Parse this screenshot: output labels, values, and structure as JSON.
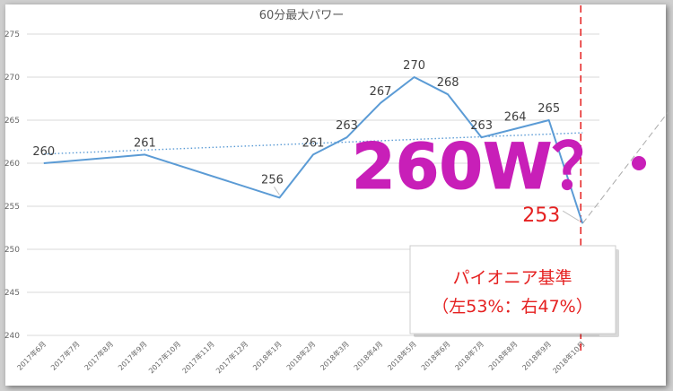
{
  "chart_data": {
    "type": "line",
    "title": "60分最大パワー",
    "categories": [
      "2017年6月",
      "2017年7月",
      "2017年8月",
      "2017年9月",
      "2017年10月",
      "2017年11月",
      "2017年12月",
      "2018年1月",
      "2018年2月",
      "2018年3月",
      "2018年4月",
      "2018年5月",
      "2018年6月",
      "2018年7月",
      "2018年8月",
      "2018年9月",
      "2018年10月"
    ],
    "series": [
      {
        "values": [
          260,
          null,
          null,
          261,
          null,
          null,
          null,
          256,
          261,
          263,
          267,
          270,
          268,
          263,
          264,
          265,
          253
        ],
        "labels": [
          "260",
          "",
          "",
          "261",
          "",
          "",
          "",
          "256",
          "261",
          "263",
          "267",
          "270",
          "268",
          "263",
          "264",
          "265",
          "253"
        ],
        "color": "#5b9bd5",
        "last_label_color": "#e52020"
      }
    ],
    "trendline": {
      "type": "linear",
      "style": "dotted",
      "color": "#5b9bd5"
    },
    "projection": {
      "from_index": 16,
      "to_value": 266,
      "style": "dashed",
      "color": "#aaaaaa"
    },
    "marker_line": {
      "at_index": 16,
      "style": "dashed",
      "color": "#e52020"
    },
    "ylim": [
      240,
      275
    ],
    "yticks": [
      240,
      245,
      250,
      255,
      260,
      265,
      270,
      275
    ],
    "grid": true,
    "xlabel": "",
    "ylabel": ""
  },
  "annotations": {
    "big_text": "260W？",
    "big_text_color": "#c81fb8",
    "box_line1": "パイオニア基準",
    "box_line2": "（左53%：右47%）",
    "box_text_color": "#e52020"
  }
}
